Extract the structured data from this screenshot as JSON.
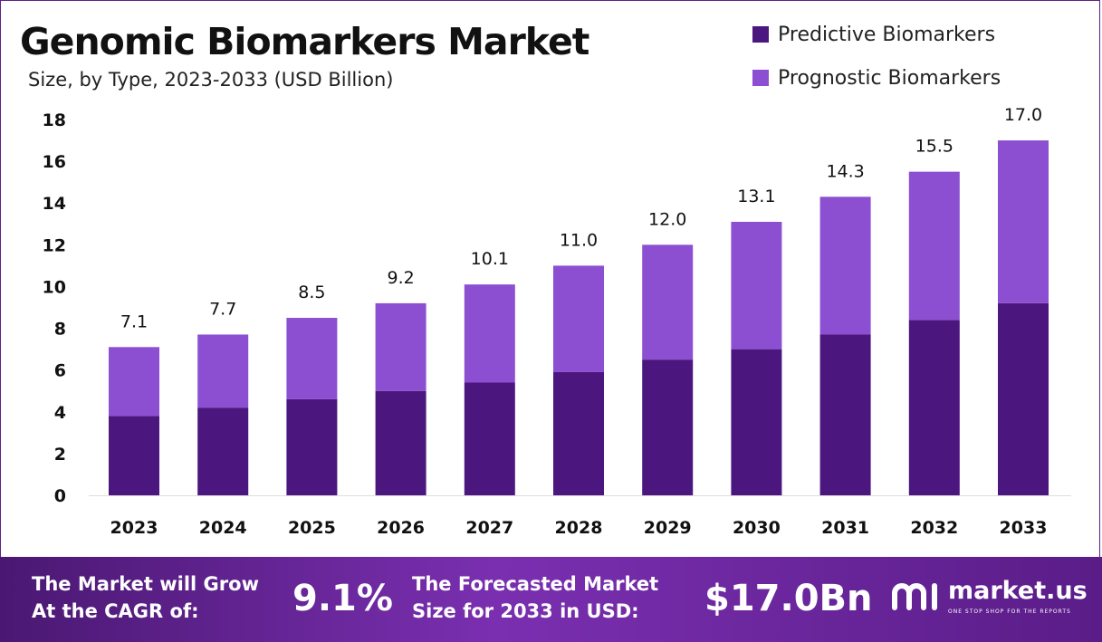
{
  "header": {
    "title": "Genomic Biomarkers Market",
    "subtitle": "Size, by Type, 2023-2033 (USD Billion)"
  },
  "legend": {
    "predictive": "Predictive Biomarkers",
    "prognostic": "Prognostic Biomarkers"
  },
  "colors": {
    "predictive": "#4b167e",
    "prognostic": "#8c4fd1",
    "axis_text": "#111111",
    "footer_start": "#4a1872",
    "footer_end": "#7a2fb0"
  },
  "chart_data": {
    "type": "bar",
    "stacked": true,
    "categories": [
      "2023",
      "2024",
      "2025",
      "2026",
      "2027",
      "2028",
      "2029",
      "2030",
      "2031",
      "2032",
      "2033"
    ],
    "series": [
      {
        "name": "Predictive Biomarkers",
        "values": [
          3.8,
          4.2,
          4.6,
          5.0,
          5.4,
          5.9,
          6.5,
          7.0,
          7.7,
          8.4,
          9.2
        ]
      },
      {
        "name": "Prognostic Biomarkers",
        "values": [
          3.3,
          3.5,
          3.9,
          4.2,
          4.7,
          5.1,
          5.5,
          6.1,
          6.6,
          7.1,
          7.8
        ]
      }
    ],
    "totals": [
      "7.1",
      "7.7",
      "8.5",
      "9.2",
      "10.1",
      "11.0",
      "12.0",
      "13.1",
      "14.3",
      "15.5",
      "17.0"
    ],
    "ylim": [
      0,
      18
    ],
    "yticks": [
      0,
      2,
      4,
      6,
      8,
      10,
      12,
      14,
      16,
      18
    ],
    "legend_position": "top-right",
    "grid": false
  },
  "footer": {
    "cagr_line1": "The Market will Grow",
    "cagr_line2": "At the CAGR of:",
    "cagr_value": "9.1%",
    "forecast_line1": "The Forecasted Market",
    "forecast_line2": "Size for 2033 in USD:",
    "forecast_value": "$17.0Bn",
    "brand": "market.us",
    "tagline": "ONE STOP SHOP FOR THE REPORTS"
  }
}
